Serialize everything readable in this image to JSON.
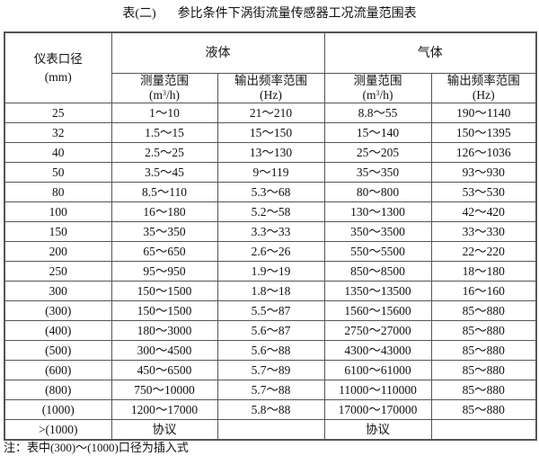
{
  "title": {
    "label": "表(二)",
    "text": "参比条件下涡街流量传感器工况流量范围表"
  },
  "table": {
    "diameter_header": "仪表口径",
    "diameter_unit": "(mm)",
    "groups": [
      "液体",
      "气体"
    ],
    "sub_headers": [
      {
        "name": "测量范围",
        "unit_pre": "(m",
        "unit_sup": "3",
        "unit_post": "/h)"
      },
      {
        "name": "输出频率范围",
        "unit_pre": "(Hz)",
        "unit_sup": "",
        "unit_post": ""
      },
      {
        "name": "测量范围",
        "unit_pre": "(m",
        "unit_sup": "3",
        "unit_post": "/h)"
      },
      {
        "name": "输出频率范围",
        "unit_pre": "(Hz)",
        "unit_sup": "",
        "unit_post": ""
      }
    ],
    "rows": [
      [
        "25",
        "1～10",
        "21～210",
        "8.8～55",
        "190～1140"
      ],
      [
        "32",
        "1.5～15",
        "15～150",
        "15～140",
        "150～1395"
      ],
      [
        "40",
        "2.5～25",
        "13～130",
        "25～205",
        "126～1036"
      ],
      [
        "50",
        "3.5～45",
        "9～119",
        "35～350",
        "93～930"
      ],
      [
        "80",
        "8.5～110",
        "5.3～68",
        "80～800",
        "53～530"
      ],
      [
        "100",
        "16～180",
        "5.2～58",
        "130～1300",
        "42～420"
      ],
      [
        "150",
        "35～350",
        "3.3～33",
        "350～3500",
        "33～330"
      ],
      [
        "200",
        "65～650",
        "2.6～26",
        "550～5500",
        "22～220"
      ],
      [
        "250",
        "95～950",
        "1.9～19",
        "850～8500",
        "18～180"
      ],
      [
        "300",
        "150～1500",
        "1.8～18",
        "1350～13500",
        "16～160"
      ],
      [
        "(300)",
        "150～1500",
        "5.5～87",
        "1560～15600",
        "85～880"
      ],
      [
        "(400)",
        "180～3000",
        "5.6～87",
        "2750～27000",
        "85～880"
      ],
      [
        "(500)",
        "300～4500",
        "5.6～88",
        "4300～43000",
        "85～880"
      ],
      [
        "(600)",
        "450～6500",
        "5.7～89",
        "6100～61000",
        "85～880"
      ],
      [
        "(800)",
        "750～10000",
        "5.7～88",
        "11000～110000",
        "85～880"
      ],
      [
        "(1000)",
        "1200～17000",
        "5.8～88",
        "17000～170000",
        "85～880"
      ],
      [
        ">(1000)",
        "协议",
        "",
        "协议",
        ""
      ]
    ]
  },
  "note": "注：表中(300)～(1000)口径为插入式"
}
